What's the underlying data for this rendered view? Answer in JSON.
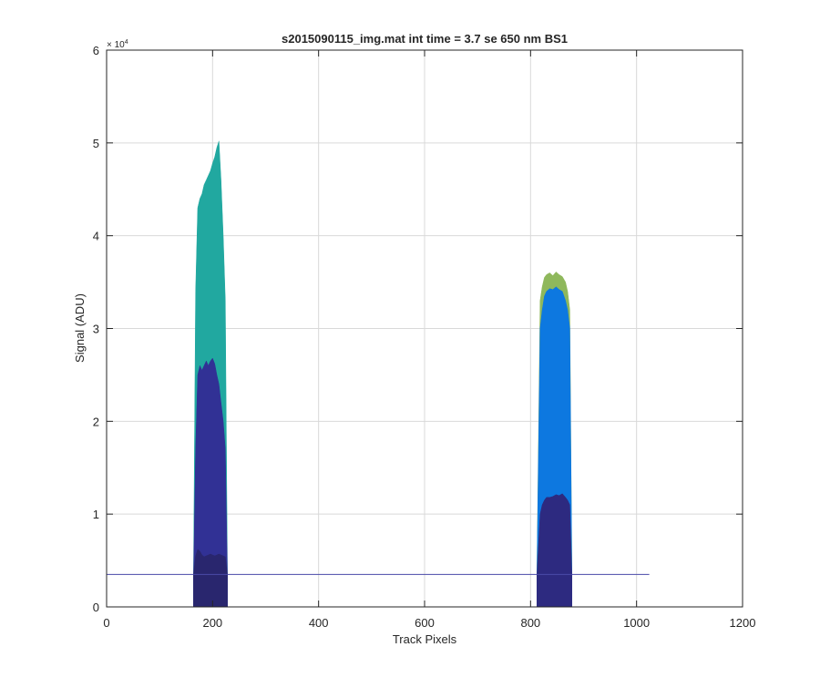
{
  "chart_data": {
    "type": "area",
    "title": "s2015090115_img.mat int time = 3.7 se  650 nm BS1",
    "xlabel": "Track Pixels",
    "ylabel": "Signal (ADU)",
    "xlim": [
      0,
      1200
    ],
    "ylim": [
      0,
      60000
    ],
    "y_exponent_label": "× 10",
    "y_exponent_power": "4",
    "x_ticks": [
      0,
      200,
      400,
      600,
      800,
      1000,
      1200
    ],
    "x_tick_labels": [
      "0",
      "200",
      "400",
      "600",
      "800",
      "1000",
      "1200"
    ],
    "y_ticks": [
      0,
      10000,
      20000,
      30000,
      40000,
      50000,
      60000
    ],
    "y_tick_labels": [
      "0",
      "1",
      "2",
      "3",
      "4",
      "5",
      "6"
    ],
    "grid": true,
    "baseline": 3500,
    "baseline_x_range": [
      0,
      1024
    ],
    "series": [
      {
        "color": "#8fb85c",
        "x": [
          812,
          818,
          822,
          826,
          830,
          836,
          842,
          848,
          854,
          860,
          866,
          870,
          874,
          878
        ],
        "values": [
          3500,
          33000,
          34500,
          35500,
          35800,
          36000,
          35700,
          36100,
          35800,
          35600,
          35000,
          34000,
          32000,
          3500
        ]
      },
      {
        "color": "#21a8a0",
        "x": [
          164,
          168,
          172,
          176,
          180,
          184,
          188,
          192,
          196,
          200,
          204,
          208,
          212,
          216,
          220,
          224,
          228
        ],
        "values": [
          3500,
          34000,
          43000,
          44000,
          44500,
          45500,
          46000,
          46500,
          47000,
          47800,
          48500,
          49500,
          50200,
          46000,
          40000,
          33000,
          3500
        ]
      },
      {
        "color": "#0d78e0",
        "x": [
          812,
          818,
          822,
          826,
          830,
          836,
          842,
          848,
          854,
          860,
          866,
          870,
          874,
          878
        ],
        "values": [
          3500,
          30000,
          32000,
          33500,
          34000,
          34300,
          34200,
          34500,
          34200,
          34000,
          33000,
          32000,
          30000,
          3500
        ]
      },
      {
        "color": "#313195",
        "x": [
          164,
          168,
          172,
          176,
          180,
          184,
          188,
          192,
          196,
          200,
          204,
          208,
          212,
          216,
          220,
          224,
          228
        ],
        "values": [
          3500,
          17000,
          25000,
          26000,
          25500,
          26000,
          26500,
          26000,
          26500,
          26800,
          26200,
          25000,
          24000,
          22000,
          20000,
          17000,
          3500
        ]
      },
      {
        "color": "#2d2a80",
        "x": [
          812,
          818,
          822,
          826,
          830,
          836,
          842,
          848,
          854,
          860,
          866,
          870,
          874,
          878
        ],
        "values": [
          3500,
          10000,
          11000,
          11500,
          11800,
          11800,
          11900,
          12100,
          12000,
          12200,
          11800,
          11500,
          11000,
          3500
        ]
      },
      {
        "color": "#29266e",
        "x": [
          164,
          168,
          172,
          176,
          180,
          184,
          188,
          192,
          196,
          200,
          204,
          208,
          212,
          216,
          220,
          224,
          228
        ],
        "values": [
          3500,
          5500,
          6200,
          6000,
          5600,
          5400,
          5500,
          5600,
          5700,
          5600,
          5500,
          5600,
          5700,
          5600,
          5500,
          5400,
          3500
        ]
      }
    ]
  }
}
